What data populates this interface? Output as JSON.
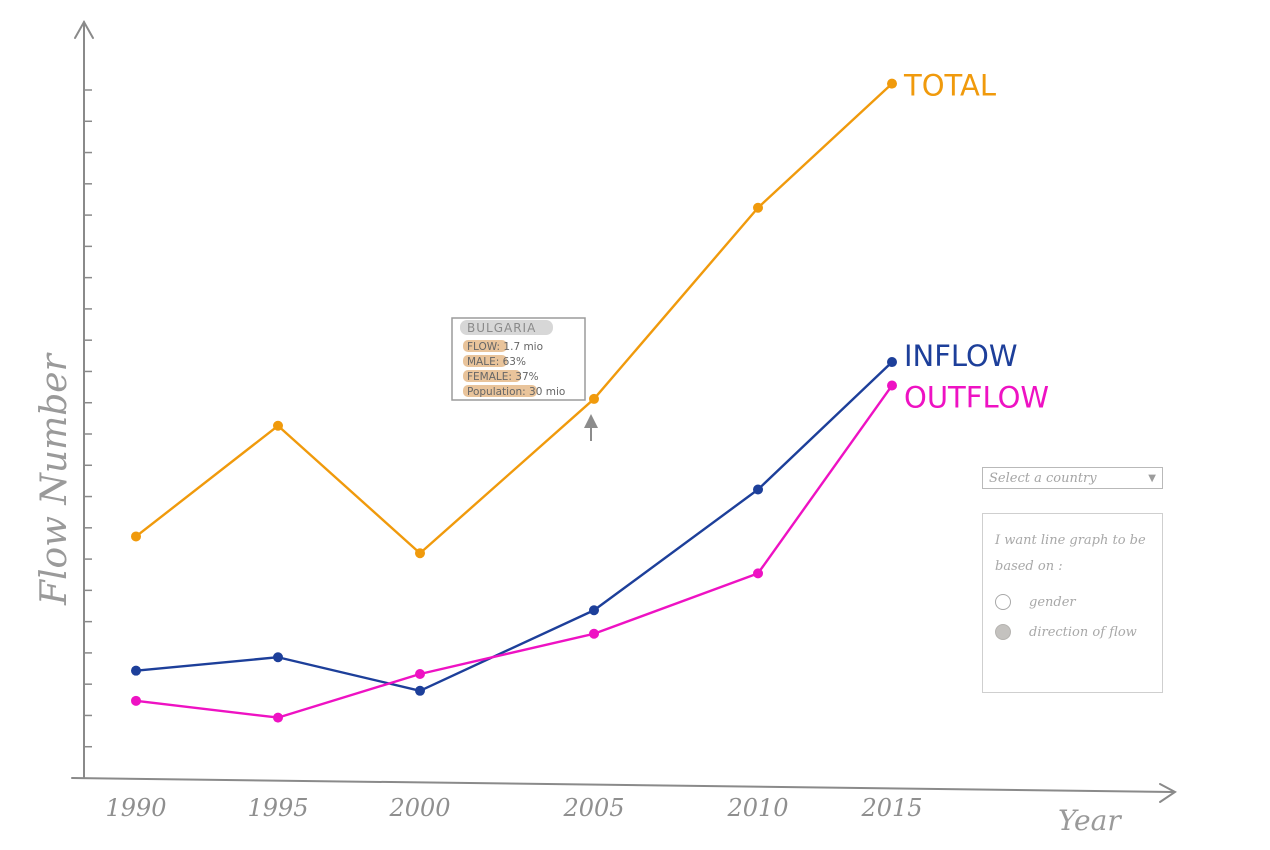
{
  "chart_data": {
    "type": "line",
    "x": [
      "1990",
      "1995",
      "2000",
      "2005",
      "2010",
      "2015"
    ],
    "xlabel": "Year",
    "ylabel": "Flow Number",
    "series": [
      {
        "name": "TOTAL",
        "color": "#f09a0c",
        "values": [
          7.2,
          10.5,
          6.7,
          11.3,
          17.0,
          20.7
        ]
      },
      {
        "name": "INFLOW",
        "color": "#1d3f9a",
        "values": [
          3.2,
          3.6,
          2.6,
          5.0,
          8.6,
          12.4
        ]
      },
      {
        "name": "OUTFLOW",
        "color": "#ee12c3",
        "values": [
          2.3,
          1.8,
          3.1,
          4.3,
          6.1,
          11.7
        ]
      }
    ],
    "ylim": [
      0,
      22
    ]
  },
  "tooltip": {
    "title": "BULGARIA",
    "rows": [
      {
        "key": "FLOW",
        "value": ": 1.7 mio"
      },
      {
        "key": "MALE",
        "value": ": 63%"
      },
      {
        "key": "FEMALE",
        "value": ": 37%"
      },
      {
        "key": "Population",
        "value": ": 30 mio"
      }
    ]
  },
  "controls": {
    "select_placeholder": "Select a country",
    "select_arrow": "▼",
    "question": "I want line graph to be based on :",
    "options": [
      {
        "label": "gender",
        "checked": false
      },
      {
        "label": "direction of flow",
        "checked": true
      }
    ]
  }
}
